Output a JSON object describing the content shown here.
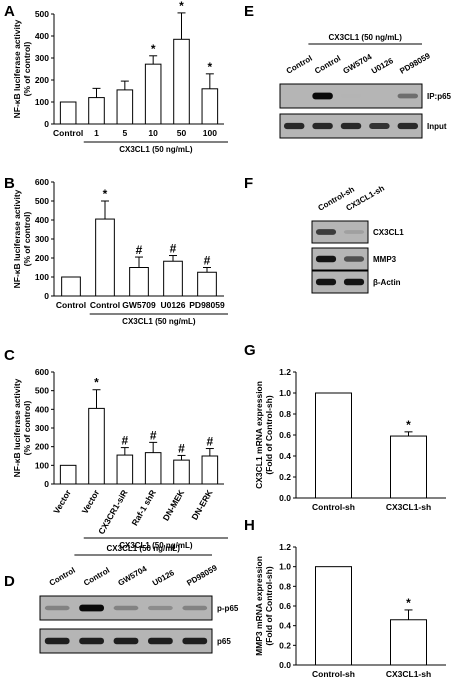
{
  "panel_labels": [
    "A",
    "B",
    "C",
    "D",
    "E",
    "F",
    "G",
    "H"
  ],
  "chart_data": [
    {
      "panel": "A",
      "type": "bar",
      "ylabel": "NF-κB luciferase activity\n(% of control)",
      "ylim": [
        0,
        500
      ],
      "yticks": [
        0,
        100,
        200,
        300,
        400,
        500
      ],
      "categories": [
        "Control",
        "1",
        "5",
        "10",
        "50",
        "100"
      ],
      "values": [
        100,
        120,
        155,
        272,
        385,
        160
      ],
      "errors": [
        0,
        42,
        40,
        38,
        120,
        68
      ],
      "annotations": [
        "",
        "",
        "",
        "*",
        "*",
        "*"
      ],
      "group_label": "CX3CL1 (50 ng/mL)"
    },
    {
      "panel": "B",
      "type": "bar",
      "ylabel": "NF-κB luciferase activity\n(% of control)",
      "ylim": [
        0,
        600
      ],
      "yticks": [
        0,
        100,
        200,
        300,
        400,
        500,
        600
      ],
      "categories": [
        "Control",
        "Control",
        "GW5709",
        "U0126",
        "PD98059"
      ],
      "values": [
        100,
        405,
        150,
        183,
        125
      ],
      "errors": [
        0,
        95,
        55,
        30,
        25
      ],
      "annotations": [
        "",
        "*",
        "#",
        "#",
        "#"
      ],
      "group_label": "CX3CL1 (50 ng/mL)"
    },
    {
      "panel": "C",
      "type": "bar",
      "ylabel": "NF-κB luciferase activity\n(% of control)",
      "ylim": [
        0,
        600
      ],
      "yticks": [
        0,
        100,
        200,
        300,
        400,
        500,
        600
      ],
      "categories": [
        "Vector",
        "Vector",
        "CX3CR1-siR",
        "Raf-1 shR",
        "DN-MEK",
        "DN-ERK"
      ],
      "values": [
        100,
        405,
        155,
        168,
        128,
        150
      ],
      "errors": [
        0,
        100,
        40,
        55,
        25,
        40
      ],
      "annotations": [
        "",
        "*",
        "#",
        "#",
        "#",
        "#"
      ],
      "group_label": "CX3CL1 (50 ng/mL)"
    },
    {
      "panel": "G",
      "type": "bar",
      "ylabel": "CX3CL1 mRNA expression\n(Fold of Control-sh)",
      "ylim": [
        0,
        1.2
      ],
      "yticks": [
        "0.0",
        "0.2",
        "0.4",
        "0.6",
        "0.8",
        "1.0",
        "1.2"
      ],
      "categories": [
        "Control-sh",
        "CX3CL1-sh"
      ],
      "values": [
        1.0,
        0.59
      ],
      "errors": [
        0,
        0.04
      ],
      "annotations": [
        "",
        "*"
      ]
    },
    {
      "panel": "H",
      "type": "bar",
      "ylabel": "MMP3 mRNA expression\n(Fold of Control-sh)",
      "ylim": [
        0,
        1.2
      ],
      "yticks": [
        "0.0",
        "0.2",
        "0.4",
        "0.6",
        "0.8",
        "1.0",
        "1.2"
      ],
      "categories": [
        "Control-sh",
        "CX3CL1-sh"
      ],
      "values": [
        1.0,
        0.46
      ],
      "errors": [
        0,
        0.1
      ],
      "annotations": [
        "",
        "*"
      ]
    }
  ],
  "blots": {
    "D": {
      "group_label": "CX3CL1 (50 ng/mL)",
      "lanes": [
        "Control",
        "Control",
        "GW5704",
        "U0126",
        "PD98059"
      ],
      "rows": [
        {
          "label": "p-p65",
          "intensity": [
            0.35,
            0.95,
            0.35,
            0.3,
            0.35
          ]
        },
        {
          "label": "p65",
          "intensity": [
            0.85,
            0.85,
            0.85,
            0.85,
            0.85
          ]
        }
      ]
    },
    "E": {
      "group_label": "CX3CL1 (50 ng/mL)",
      "lanes": [
        "Control",
        "Control",
        "GW5704",
        "U0126",
        "PD98059"
      ],
      "rows": [
        {
          "label": "IP:p65",
          "intensity": [
            0.05,
            0.95,
            0.1,
            0.05,
            0.45
          ]
        },
        {
          "label": "Input",
          "intensity": [
            0.8,
            0.8,
            0.8,
            0.75,
            0.8
          ]
        }
      ]
    },
    "F": {
      "lanes": [
        "Control-sh",
        "CX3CL1-sh"
      ],
      "rows": [
        {
          "label": "CX3CL1",
          "intensity": [
            0.7,
            0.2
          ]
        },
        {
          "label": "MMP3",
          "intensity": [
            0.9,
            0.6
          ]
        },
        {
          "label": "β-Actin",
          "intensity": [
            0.9,
            0.9
          ]
        }
      ]
    }
  }
}
